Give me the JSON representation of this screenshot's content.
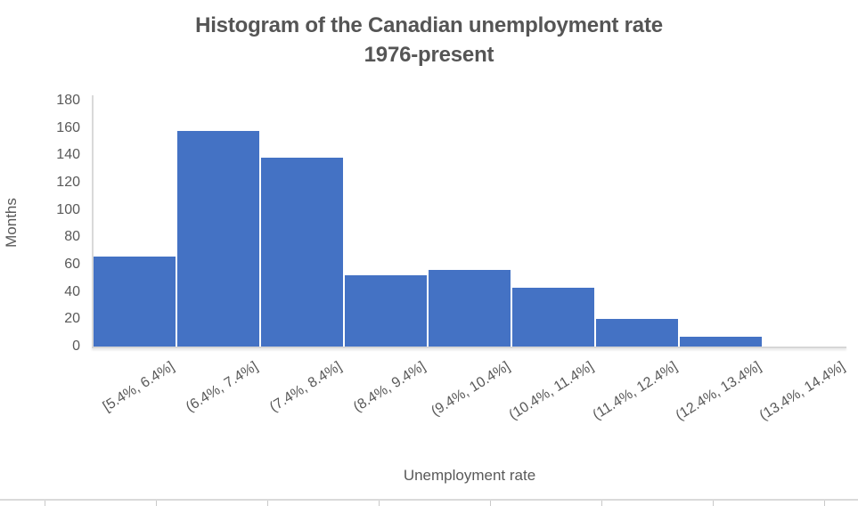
{
  "title": {
    "line1": "Histogram of the Canadian unemployment rate",
    "line2": "1976-present"
  },
  "y_axis": {
    "title": "Months"
  },
  "x_axis": {
    "title": "Unemployment rate"
  },
  "chart_data": {
    "type": "bar",
    "subtype": "histogram",
    "title": "Histogram of the Canadian unemployment rate 1976-present",
    "xlabel": "Unemployment rate",
    "ylabel": "Months",
    "categories": [
      "[5.4%, 6.4%]",
      "(6.4%, 7.4%]",
      "(7.4%, 8.4%]",
      "(8.4%, 9.4%]",
      "(9.4%, 10.4%]",
      "(10.4%, 11.4%]",
      "(11.4%, 12.4%]",
      "(12.4%, 13.4%]",
      "(13.4%, 14.4%]"
    ],
    "values": [
      66,
      158,
      138,
      52,
      56,
      43,
      20,
      7,
      0
    ],
    "ylim": [
      0,
      180
    ],
    "yticks": [
      0,
      20,
      40,
      60,
      80,
      100,
      120,
      140,
      160,
      180
    ],
    "grid": false,
    "legend": false,
    "bar_color": "#4472C4"
  },
  "colors": {
    "bar": "#4472C4",
    "text": "#595959",
    "title_text": "#555555",
    "axis_line": "#D9D9D9",
    "background": "#FFFFFF"
  }
}
